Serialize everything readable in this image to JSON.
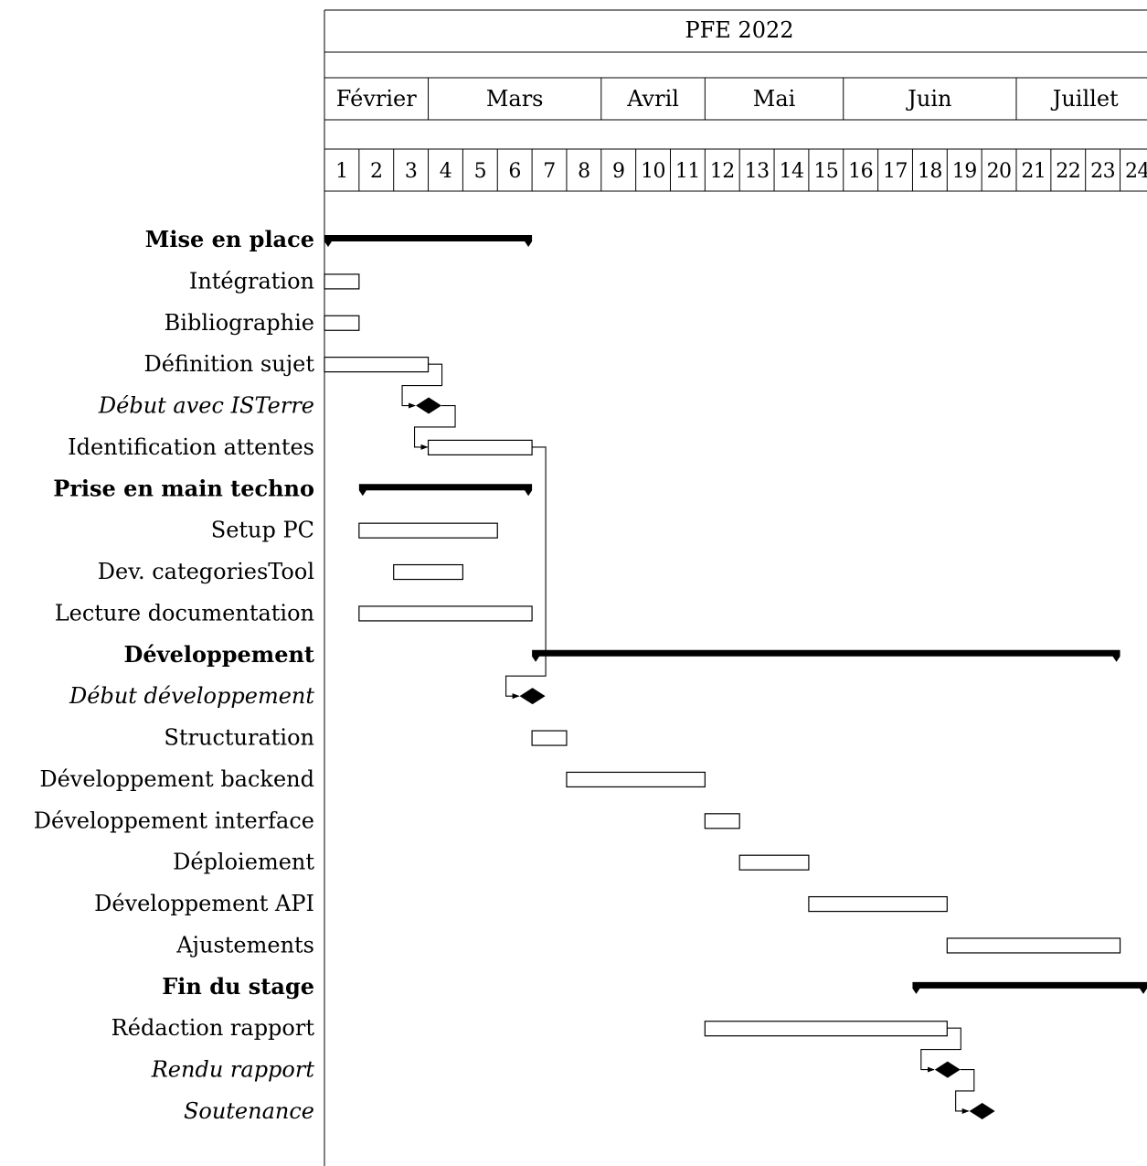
{
  "chart_data": {
    "type": "gantt",
    "title": "PFE 2022",
    "unit_columns": [
      "1",
      "2",
      "3",
      "4",
      "5",
      "6",
      "7",
      "8",
      "9",
      "10",
      "11",
      "12",
      "13",
      "14",
      "15",
      "16",
      "17",
      "18",
      "19",
      "20",
      "21",
      "22",
      "23",
      "24"
    ],
    "months": [
      {
        "label": "Février",
        "start": 1,
        "end": 3
      },
      {
        "label": "Mars",
        "start": 4,
        "end": 8
      },
      {
        "label": "Avril",
        "start": 9,
        "end": 11
      },
      {
        "label": "Mai",
        "start": 12,
        "end": 15
      },
      {
        "label": "Juin",
        "start": 16,
        "end": 20
      },
      {
        "label": "Juillet",
        "start": 21,
        "end": 24
      }
    ],
    "tasks": [
      {
        "label": "Mise en place",
        "kind": "group",
        "start": 1,
        "end": 6
      },
      {
        "label": "Intégration",
        "kind": "bar",
        "start": 1,
        "end": 1
      },
      {
        "label": "Bibliographie",
        "kind": "bar",
        "start": 1,
        "end": 1
      },
      {
        "label": "Définition sujet",
        "kind": "bar",
        "start": 1,
        "end": 3
      },
      {
        "label": "Début avec ISTerre",
        "kind": "milestone",
        "at": 4
      },
      {
        "label": "Identification attentes",
        "kind": "bar",
        "start": 4,
        "end": 6
      },
      {
        "label": "Prise en main techno",
        "kind": "group",
        "start": 2,
        "end": 6
      },
      {
        "label": "Setup PC",
        "kind": "bar",
        "start": 2,
        "end": 5
      },
      {
        "label": "Dev. categoriesTool",
        "kind": "bar",
        "start": 3,
        "end": 4
      },
      {
        "label": "Lecture documentation",
        "kind": "bar",
        "start": 2,
        "end": 6
      },
      {
        "label": "Développement",
        "kind": "group",
        "start": 7,
        "end": 23
      },
      {
        "label": "Début développement",
        "kind": "milestone",
        "at": 7
      },
      {
        "label": "Structuration",
        "kind": "bar",
        "start": 7,
        "end": 7
      },
      {
        "label": "Développement backend",
        "kind": "bar",
        "start": 8,
        "end": 11
      },
      {
        "label": "Développement interface",
        "kind": "bar",
        "start": 12,
        "end": 12
      },
      {
        "label": "Déploiement",
        "kind": "bar",
        "start": 13,
        "end": 14
      },
      {
        "label": "Développement API",
        "kind": "bar",
        "start": 15,
        "end": 18
      },
      {
        "label": "Ajustements",
        "kind": "bar",
        "start": 19,
        "end": 23
      },
      {
        "label": "Fin du stage",
        "kind": "group",
        "start": 18,
        "end": 24
      },
      {
        "label": "Rédaction rapport",
        "kind": "bar",
        "start": 12,
        "end": 18
      },
      {
        "label": "Rendu rapport",
        "kind": "milestone",
        "at": 19
      },
      {
        "label": "Soutenance",
        "kind": "milestone",
        "at": 20
      }
    ],
    "links": [
      {
        "from": "Définition sujet",
        "to": "Début avec ISTerre"
      },
      {
        "from": "Début avec ISTerre",
        "to": "Identification attentes"
      },
      {
        "from": "Identification attentes",
        "to": "Début développement"
      },
      {
        "from": "Rédaction rapport",
        "to": "Rendu rapport"
      },
      {
        "from": "Rendu rapport",
        "to": "Soutenance"
      }
    ]
  }
}
